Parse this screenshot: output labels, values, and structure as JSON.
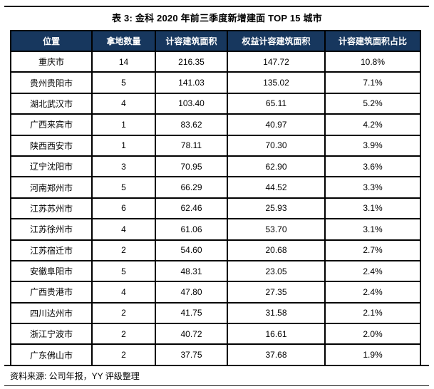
{
  "title": "表 3: 金科 2020 年前三季度新增建面 TOP 15 城市",
  "source_note": "资料来源: 公司年报，YY 评级整理",
  "colors": {
    "header_bg": "#17375E",
    "header_text": "#FFFFFF",
    "table_border": "#000000",
    "rule": "#0D0D0D",
    "body_text": "#000000"
  },
  "table": {
    "headers": [
      "位置",
      "拿地数量",
      "计容建筑面积",
      "权益计容建筑面积",
      "计容建筑面积占比"
    ],
    "rows": [
      [
        "重庆市",
        "14",
        "216.35",
        "147.72",
        "10.8%"
      ],
      [
        "贵州贵阳市",
        "5",
        "141.03",
        "135.02",
        "7.1%"
      ],
      [
        "湖北武汉市",
        "4",
        "103.40",
        "65.11",
        "5.2%"
      ],
      [
        "广西来宾市",
        "1",
        "83.62",
        "40.97",
        "4.2%"
      ],
      [
        "陕西西安市",
        "1",
        "78.11",
        "70.30",
        "3.9%"
      ],
      [
        "辽宁沈阳市",
        "3",
        "70.95",
        "62.90",
        "3.6%"
      ],
      [
        "河南郑州市",
        "5",
        "66.29",
        "44.52",
        "3.3%"
      ],
      [
        "江苏苏州市",
        "6",
        "62.46",
        "25.93",
        "3.1%"
      ],
      [
        "江苏徐州市",
        "4",
        "61.06",
        "53.70",
        "3.1%"
      ],
      [
        "江苏宿迁市",
        "2",
        "54.60",
        "20.68",
        "2.7%"
      ],
      [
        "安徽阜阳市",
        "5",
        "48.31",
        "23.05",
        "2.4%"
      ],
      [
        "广西贵港市",
        "4",
        "47.80",
        "27.35",
        "2.4%"
      ],
      [
        "四川达州市",
        "2",
        "41.75",
        "31.58",
        "2.1%"
      ],
      [
        "浙江宁波市",
        "2",
        "40.72",
        "16.61",
        "2.0%"
      ],
      [
        "广东佛山市",
        "2",
        "37.75",
        "37.68",
        "1.9%"
      ]
    ]
  },
  "chart_data": {
    "type": "table",
    "title": "表 3: 金科 2020 年前三季度新增建面 TOP 15 城市",
    "columns": [
      "位置",
      "拿地数量",
      "计容建筑面积",
      "权益计容建筑面积",
      "计容建筑面积占比"
    ],
    "rows": [
      [
        "重庆市",
        14,
        216.35,
        147.72,
        "10.8%"
      ],
      [
        "贵州贵阳市",
        5,
        141.03,
        135.02,
        "7.1%"
      ],
      [
        "湖北武汉市",
        4,
        103.4,
        65.11,
        "5.2%"
      ],
      [
        "广西来宾市",
        1,
        83.62,
        40.97,
        "4.2%"
      ],
      [
        "陕西西安市",
        1,
        78.11,
        70.3,
        "3.9%"
      ],
      [
        "辽宁沈阳市",
        3,
        70.95,
        62.9,
        "3.6%"
      ],
      [
        "河南郑州市",
        5,
        66.29,
        44.52,
        "3.3%"
      ],
      [
        "江苏苏州市",
        6,
        62.46,
        25.93,
        "3.1%"
      ],
      [
        "江苏徐州市",
        4,
        61.06,
        53.7,
        "3.1%"
      ],
      [
        "江苏宿迁市",
        2,
        54.6,
        20.68,
        "2.7%"
      ],
      [
        "安徽阜阳市",
        5,
        48.31,
        23.05,
        "2.4%"
      ],
      [
        "广西贵港市",
        4,
        47.8,
        27.35,
        "2.4%"
      ],
      [
        "四川达州市",
        2,
        41.75,
        31.58,
        "2.1%"
      ],
      [
        "浙江宁波市",
        2,
        40.72,
        16.61,
        "2.0%"
      ],
      [
        "广东佛山市",
        2,
        37.75,
        37.68,
        "1.9%"
      ]
    ],
    "source": "资料来源: 公司年报，YY 评级整理"
  }
}
